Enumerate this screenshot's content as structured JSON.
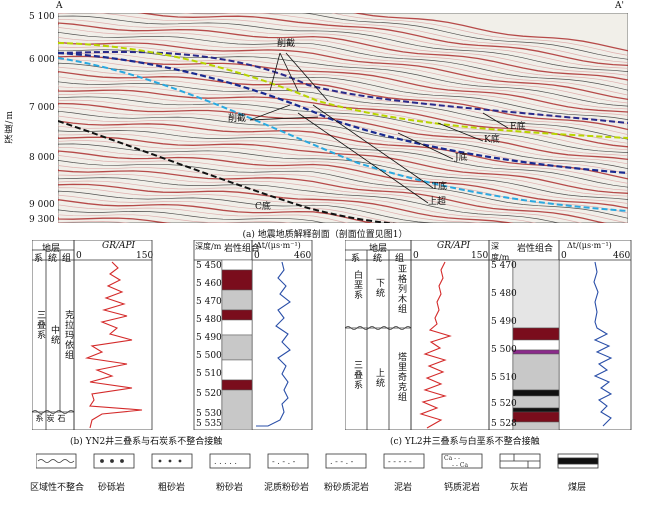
{
  "section": {
    "left_mark": "A",
    "right_mark": "A'",
    "y_axis_label": "深度/m",
    "y_ticks": [
      "5 100",
      "6 000",
      "7 000",
      "8 000",
      "9 000",
      "9 300"
    ],
    "annotations": {
      "truncation_top": "削截",
      "truncation_mid": "削截",
      "e_base": "E底",
      "k_base": "K底",
      "j_base": "J底",
      "t_base": "T底",
      "onlap": "上超",
      "c_base": "C底"
    },
    "caption": "(a) 地震地质解释剖面（剖面位置见图1）"
  },
  "panel_b": {
    "headers": {
      "strata": "地层",
      "system": "系",
      "series": "统",
      "formation": "组",
      "gr": "GR/API",
      "gr_min": "0",
      "gr_max": "150",
      "depth": "深度/m",
      "lith": "岩性组合",
      "dt": "Δt/(μs·m⁻¹)",
      "dt_min": "0",
      "dt_max": "460"
    },
    "system_upper": "三叠系",
    "series_upper": "中统",
    "formation_upper": "克拉玛依组",
    "system_lower": "石炭系",
    "depth_ticks": [
      "5 450",
      "5 460",
      "5 470",
      "5 480",
      "5 490",
      "5 500",
      "5 510",
      "5 520",
      "5 530",
      "5 535"
    ],
    "caption": "(b) YN2井三叠系与石炭系不整合接触"
  },
  "panel_c": {
    "headers": {
      "strata": "地层",
      "system": "系",
      "series": "统",
      "formation": "组",
      "gr": "GR/API",
      "gr_min": "0",
      "gr_max": "150",
      "depth": "深度/m",
      "lith": "岩性组合",
      "dt": "Δt/(μs·m⁻¹)",
      "dt_min": "0",
      "dt_max": "460"
    },
    "system_upper": "白垩系",
    "series_upper": "下统",
    "formation_upper": "亚格列木组",
    "system_lower": "三叠系",
    "series_lower": "上统",
    "formation_lower": "塔里奇克组",
    "depth_ticks": [
      "5 470",
      "5 480",
      "5 490",
      "5 500",
      "5 510",
      "5 520",
      "5 528"
    ],
    "caption": "(c) YL2井三叠系与白垩系不整合接触"
  },
  "legend": [
    {
      "key": "unconformity",
      "label": "区域性不整合"
    },
    {
      "key": "gravel-sandstone",
      "label": "砂砾岩"
    },
    {
      "key": "coarse-sandstone",
      "label": "粗砂岩"
    },
    {
      "key": "siltstone",
      "label": "粉砂岩"
    },
    {
      "key": "muddy-siltstone",
      "label": "泥质粉砂岩"
    },
    {
      "key": "silty-mudstone",
      "label": "粉砂质泥岩"
    },
    {
      "key": "mudstone",
      "label": "泥岩"
    },
    {
      "key": "calcareous-mudstone",
      "label": "钙质泥岩"
    },
    {
      "key": "limestone",
      "label": "灰岩"
    },
    {
      "key": "coal",
      "label": "煤层"
    }
  ],
  "colors": {
    "gr_curve": "#d42a2a",
    "dt_curve": "#2a4fa8",
    "mudstone_red": "#7a0d1c",
    "coal_purple": "#8a2a8a",
    "fill_gray": "#c8c8c8"
  }
}
